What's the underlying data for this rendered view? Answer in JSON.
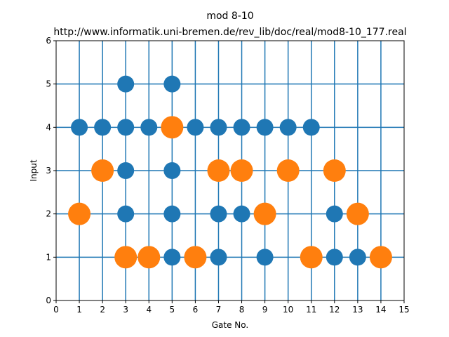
{
  "chart_data": {
    "type": "scatter",
    "title": "mod 8-10",
    "subtitle": "http://www.informatik.uni-bremen.de/rev_lib/doc/real/mod8-10_177.real",
    "xlabel": "Gate No.",
    "ylabel": "Input",
    "xlim": [
      0,
      15
    ],
    "ylim": [
      0,
      6
    ],
    "xticks": [
      "0",
      "1",
      "2",
      "3",
      "4",
      "5",
      "6",
      "7",
      "8",
      "9",
      "10",
      "11",
      "12",
      "13",
      "14",
      "15"
    ],
    "yticks": [
      "0",
      "1",
      "2",
      "3",
      "4",
      "5",
      "6"
    ],
    "grid": true,
    "grid_x": [
      1,
      2,
      3,
      4,
      5,
      6,
      7,
      8,
      9,
      10,
      11,
      12,
      13,
      14
    ],
    "grid_y": [
      1,
      2,
      3,
      4,
      5
    ],
    "grid_color": "#1f77b4",
    "series": [
      {
        "color": "#1f77b4",
        "marker": "control",
        "points": [
          [
            1,
            4
          ],
          [
            2,
            4
          ],
          [
            3,
            2
          ],
          [
            3,
            3
          ],
          [
            3,
            4
          ],
          [
            3,
            5
          ],
          [
            4,
            4
          ],
          [
            5,
            1
          ],
          [
            5,
            2
          ],
          [
            5,
            3
          ],
          [
            5,
            5
          ],
          [
            6,
            4
          ],
          [
            7,
            1
          ],
          [
            7,
            2
          ],
          [
            7,
            4
          ],
          [
            8,
            2
          ],
          [
            8,
            4
          ],
          [
            9,
            1
          ],
          [
            9,
            4
          ],
          [
            10,
            4
          ],
          [
            11,
            4
          ],
          [
            12,
            1
          ],
          [
            12,
            2
          ],
          [
            13,
            1
          ]
        ]
      },
      {
        "color": "#ff7f0e",
        "marker": "target",
        "points": [
          [
            1,
            2
          ],
          [
            2,
            3
          ],
          [
            3,
            1
          ],
          [
            4,
            1
          ],
          [
            5,
            4
          ],
          [
            6,
            1
          ],
          [
            7,
            3
          ],
          [
            8,
            3
          ],
          [
            9,
            2
          ],
          [
            10,
            3
          ],
          [
            11,
            1
          ],
          [
            12,
            3
          ],
          [
            13,
            2
          ],
          [
            14,
            1
          ]
        ]
      }
    ]
  }
}
